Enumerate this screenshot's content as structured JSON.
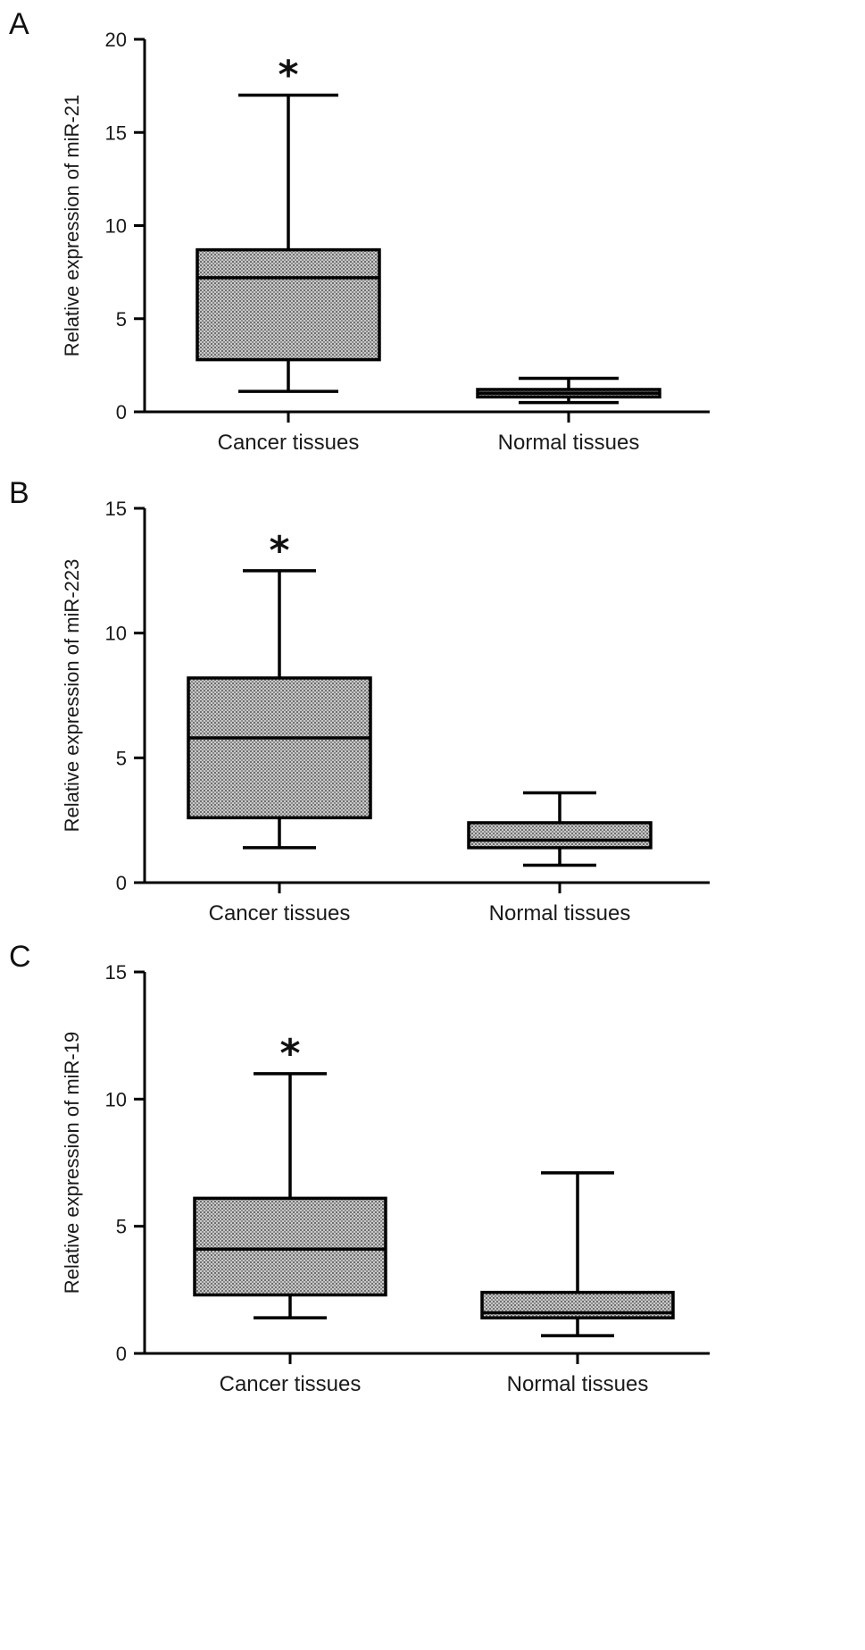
{
  "chart_data": [
    {
      "panel": "A",
      "type": "box",
      "ylabel": "Relative expression of miR-21",
      "ylim": [
        0,
        20
      ],
      "yticks": [
        0,
        5,
        10,
        15,
        20
      ],
      "categories": [
        "Cancer tissues",
        "Normal tissues"
      ],
      "boxes": [
        {
          "category": "Cancer tissues",
          "min": 1.1,
          "q1": 2.8,
          "median": 7.2,
          "q3": 8.7,
          "max": 17.0,
          "significant": true
        },
        {
          "category": "Normal tissues",
          "min": 0.5,
          "q1": 0.8,
          "median": 1.0,
          "q3": 1.2,
          "max": 1.8,
          "significant": false
        }
      ],
      "annotation": "*"
    },
    {
      "panel": "B",
      "type": "box",
      "ylabel": "Relative expression of miR-223",
      "ylim": [
        0,
        15
      ],
      "yticks": [
        0,
        5,
        10,
        15
      ],
      "categories": [
        "Cancer tissues",
        "Normal tissues"
      ],
      "boxes": [
        {
          "category": "Cancer tissues",
          "min": 1.4,
          "q1": 2.6,
          "median": 5.8,
          "q3": 8.2,
          "max": 12.5,
          "significant": true
        },
        {
          "category": "Normal tissues",
          "min": 0.7,
          "q1": 1.4,
          "median": 1.7,
          "q3": 2.4,
          "max": 3.6,
          "significant": false
        }
      ],
      "annotation": "*"
    },
    {
      "panel": "C",
      "type": "box",
      "ylabel": "Relative expression of miR-19",
      "ylim": [
        0,
        15
      ],
      "yticks": [
        0,
        5,
        10,
        15
      ],
      "categories": [
        "Cancer tissues",
        "Normal tissues"
      ],
      "boxes": [
        {
          "category": "Cancer tissues",
          "min": 1.4,
          "q1": 2.3,
          "median": 4.1,
          "q3": 6.1,
          "max": 11.0,
          "significant": true
        },
        {
          "category": "Normal tissues",
          "min": 0.7,
          "q1": 1.4,
          "median": 1.6,
          "q3": 2.4,
          "max": 7.1,
          "significant": false
        }
      ],
      "annotation": "*"
    }
  ]
}
